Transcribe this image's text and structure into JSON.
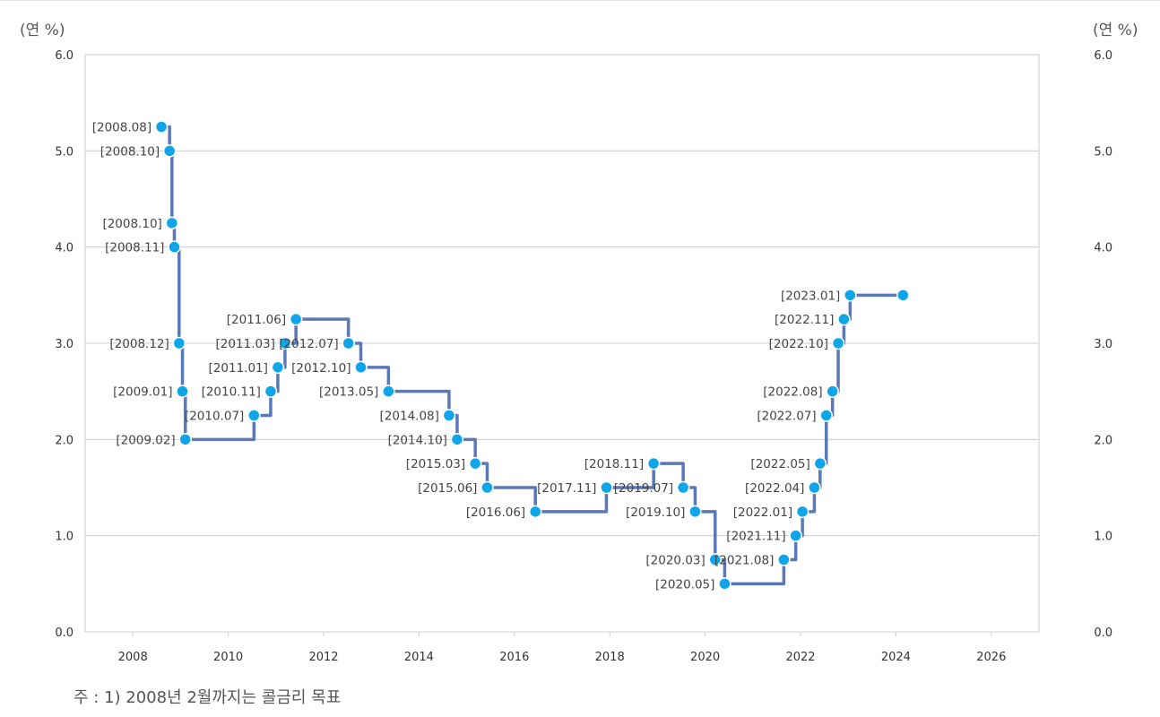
{
  "left_unit": "(연 %)",
  "right_unit": "(연 %)",
  "note": "주 : 1) 2008년 2월까지는 콜금리 목표",
  "colors": {
    "line": "#5b78b8",
    "point": "#0ea5e9",
    "grid": "#cccccc",
    "point_stroke": "#ffffff"
  },
  "chart_data": {
    "type": "line",
    "step": true,
    "x_range": [
      2007,
      2027
    ],
    "x_ticks": [
      "2008",
      "2010",
      "2012",
      "2014",
      "2016",
      "2018",
      "2020",
      "2022",
      "2024",
      "2026"
    ],
    "y_range": [
      0,
      6
    ],
    "y_ticks": [
      "0.0",
      "1.0",
      "2.0",
      "3.0",
      "4.0",
      "5.0",
      "6.0"
    ],
    "y_ticks_right": [
      "0.0",
      "1.0",
      "2.0",
      "3.0",
      "4.0",
      "5.0",
      "6.0"
    ],
    "grid": "horizontal",
    "points": [
      {
        "x": 2008.6,
        "y": 5.25,
        "label": "[2008.08]"
      },
      {
        "x": 2008.77,
        "y": 5.0,
        "label": "[2008.10]"
      },
      {
        "x": 2008.82,
        "y": 4.25,
        "label": "[2008.10]"
      },
      {
        "x": 2008.87,
        "y": 4.0,
        "label": "[2008.11]"
      },
      {
        "x": 2008.97,
        "y": 3.0,
        "label": "[2008.12]"
      },
      {
        "x": 2009.04,
        "y": 2.5,
        "label": "[2009.01]"
      },
      {
        "x": 2009.1,
        "y": 2.0,
        "label": "[2009.02]"
      },
      {
        "x": 2010.54,
        "y": 2.25,
        "label": "[2010.07]"
      },
      {
        "x": 2010.89,
        "y": 2.5,
        "label": "[2010.11]"
      },
      {
        "x": 2011.04,
        "y": 2.75,
        "label": "[2011.01]"
      },
      {
        "x": 2011.19,
        "y": 3.0,
        "label": "[2011.03]"
      },
      {
        "x": 2011.42,
        "y": 3.25,
        "label": "[2011.06]"
      },
      {
        "x": 2012.52,
        "y": 3.0,
        "label": "[2012.07]"
      },
      {
        "x": 2012.78,
        "y": 2.75,
        "label": "[2012.10]"
      },
      {
        "x": 2013.36,
        "y": 2.5,
        "label": "[2013.05]"
      },
      {
        "x": 2014.63,
        "y": 2.25,
        "label": "[2014.08]"
      },
      {
        "x": 2014.8,
        "y": 2.0,
        "label": "[2014.10]"
      },
      {
        "x": 2015.18,
        "y": 1.75,
        "label": "[2015.03]"
      },
      {
        "x": 2015.43,
        "y": 1.5,
        "label": "[2015.06]"
      },
      {
        "x": 2016.44,
        "y": 1.25,
        "label": "[2016.06]"
      },
      {
        "x": 2017.93,
        "y": 1.5,
        "label": "[2017.11]"
      },
      {
        "x": 2018.92,
        "y": 1.75,
        "label": "[2018.11]"
      },
      {
        "x": 2019.54,
        "y": 1.5,
        "label": "[2019.07]"
      },
      {
        "x": 2019.79,
        "y": 1.25,
        "label": "[2019.10]"
      },
      {
        "x": 2020.21,
        "y": 0.75,
        "label": "[2020.03]"
      },
      {
        "x": 2020.41,
        "y": 0.5,
        "label": "[2020.05]"
      },
      {
        "x": 2021.65,
        "y": 0.75,
        "label": "[2021.08]"
      },
      {
        "x": 2021.9,
        "y": 1.0,
        "label": "[2021.11]"
      },
      {
        "x": 2022.04,
        "y": 1.25,
        "label": "[2022.01]"
      },
      {
        "x": 2022.29,
        "y": 1.5,
        "label": "[2022.04]"
      },
      {
        "x": 2022.41,
        "y": 1.75,
        "label": "[2022.05]"
      },
      {
        "x": 2022.54,
        "y": 2.25,
        "label": "[2022.07]"
      },
      {
        "x": 2022.67,
        "y": 2.5,
        "label": "[2022.08]"
      },
      {
        "x": 2022.79,
        "y": 3.0,
        "label": "[2022.10]"
      },
      {
        "x": 2022.91,
        "y": 3.25,
        "label": "[2022.11]"
      },
      {
        "x": 2023.04,
        "y": 3.5,
        "label": "[2023.01]"
      },
      {
        "x": 2024.15,
        "y": 3.5,
        "label": ""
      }
    ]
  }
}
